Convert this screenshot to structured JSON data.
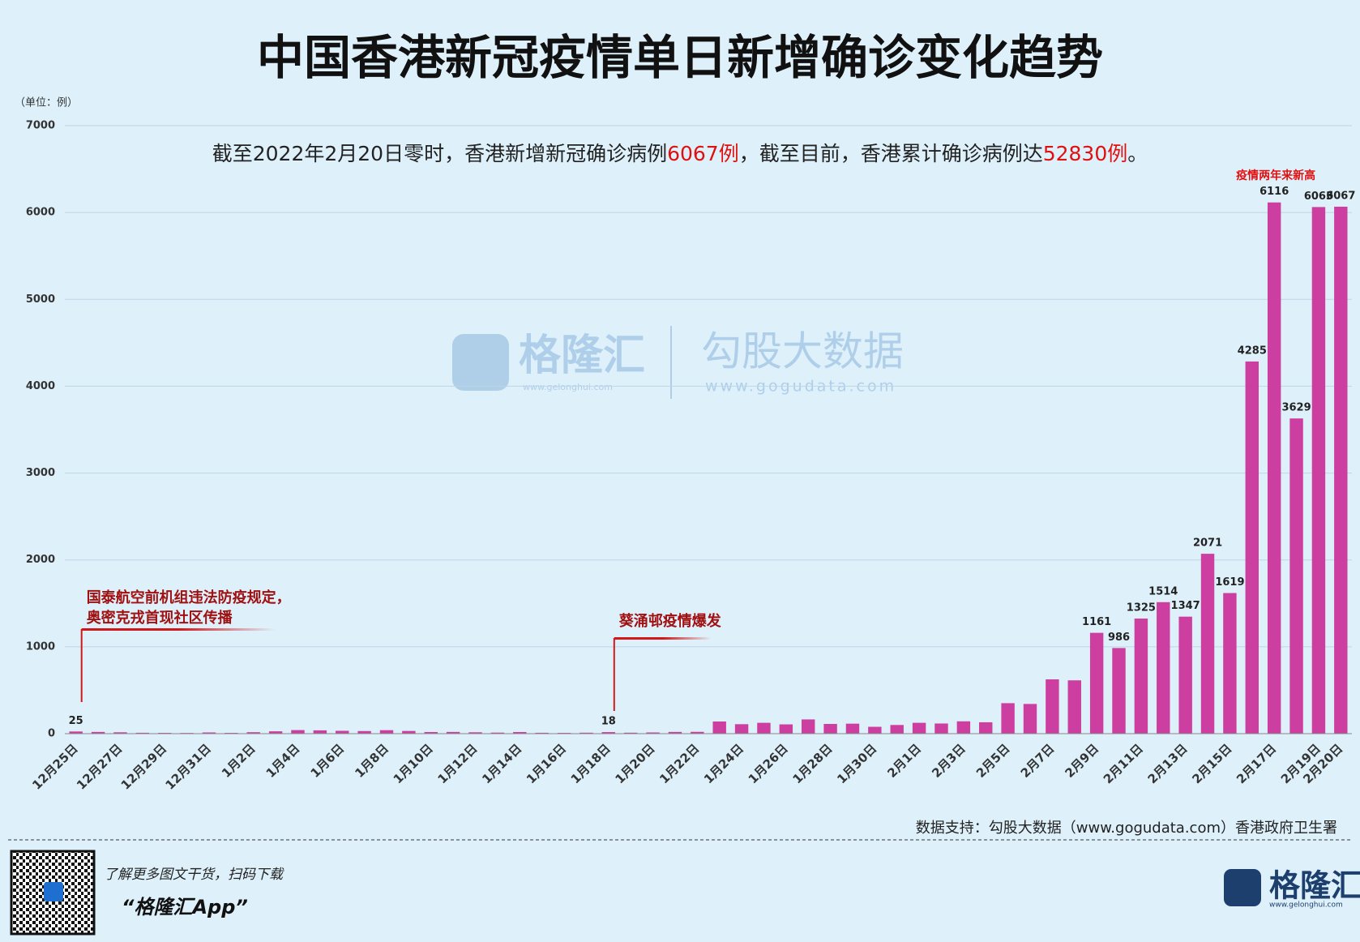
{
  "chart_data": {
    "type": "bar",
    "title": "中国香港新冠疫情单日新增确诊变化趋势",
    "unit_label": "（单位：例）",
    "subtitle": [
      "截至2022年2月20日零时，香港新增新冠确诊病例",
      "6067例",
      "，截至目前，香港累计确诊病例达",
      "52830例",
      "。"
    ],
    "categories": [
      "12月25日",
      null,
      "12月27日",
      null,
      "12月29日",
      null,
      "12月31日",
      null,
      "1月2日",
      null,
      "1月4日",
      null,
      "1月6日",
      null,
      "1月8日",
      null,
      "1月10日",
      null,
      "1月12日",
      null,
      "1月14日",
      null,
      "1月16日",
      null,
      "1月18日",
      null,
      "1月20日",
      null,
      "1月22日",
      null,
      "1月24日",
      null,
      "1月26日",
      null,
      "1月28日",
      null,
      "1月30日",
      null,
      "2月1日",
      null,
      "2月3日",
      null,
      "2月5日",
      null,
      "2月7日",
      null,
      "2月9日",
      null,
      "2月11日",
      null,
      "2月13日",
      null,
      "2月15日",
      null,
      "2月17日",
      null,
      "2月19日",
      "2月20日"
    ],
    "values": [
      25,
      20,
      16,
      10,
      9,
      8,
      14,
      9,
      17,
      27,
      41,
      38,
      33,
      30,
      40,
      31,
      19,
      20,
      16,
      12,
      19,
      10,
      9,
      11,
      18,
      11,
      14,
      20,
      21,
      140,
      109,
      125,
      107,
      164,
      112,
      115,
      79,
      100,
      125,
      117,
      142,
      131,
      351,
      342,
      625,
      614,
      1161,
      986,
      1325,
      1514,
      1347,
      2071,
      1619,
      4285,
      6116,
      3629,
      6063,
      6067
    ],
    "value_labels": [
      "25",
      null,
      null,
      null,
      null,
      null,
      null,
      null,
      null,
      null,
      null,
      null,
      null,
      null,
      null,
      null,
      null,
      null,
      null,
      null,
      null,
      null,
      null,
      null,
      "18",
      null,
      null,
      null,
      null,
      null,
      null,
      null,
      null,
      null,
      null,
      null,
      null,
      null,
      null,
      null,
      null,
      null,
      null,
      null,
      null,
      null,
      "1161",
      "986",
      "1325",
      "1514",
      "1347",
      "2071",
      "1619",
      "4285",
      "6116",
      "3629",
      "6063",
      "6067"
    ],
    "color": "#cc3fa0",
    "ylim": [
      0,
      7000
    ],
    "yticks": [
      0,
      1000,
      2000,
      3000,
      4000,
      5000,
      6000,
      7000
    ],
    "grid": true,
    "annotations": [
      [
        "国泰航空前机组违法防疫规定，",
        "奥密克戎首现社区传播"
      ],
      [
        "葵涌邨疫情爆发"
      ],
      [
        "疫情两年来新高"
      ]
    ],
    "source": "数据支持：勾股大数据（www.gogudata.com）香港政府卫生署",
    "watermark": [
      "格隆汇",
      "www.gelonghui.com",
      "勾股大数据",
      "www.gogudata.com"
    ],
    "footer": [
      "了解更多图文干货，扫码下载",
      "“格隆汇App”",
      "格隆汇",
      "www.gelonghui.com"
    ]
  }
}
